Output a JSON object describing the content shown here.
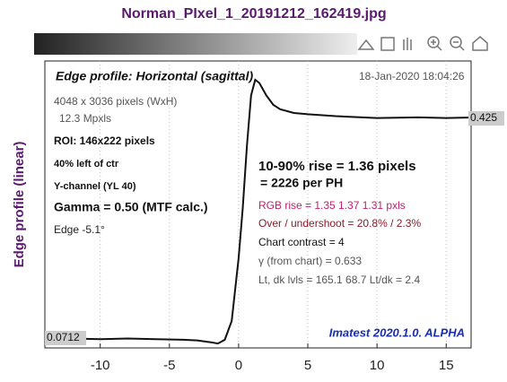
{
  "chart_data": {
    "type": "line",
    "title": "Norman_PIxel_1_20191212_162419.jpg",
    "plot_title": "Edge profile: Horizontal (sagittal)",
    "timestamp": "18-Jan-2020 18:04:26",
    "y_label": "Edge profile (linear)",
    "left_notes": [
      "4048 x 3036 pixels (WxH)",
      "12.3 Mpxls",
      "ROI:  146x222 pixels",
      "40% left of ctr",
      "Y-channel  (YL 40)",
      "Gamma = 0.50 (MTF calc.)",
      "Edge  -5.1°"
    ],
    "right_notes": [
      "10-90% rise = 1.36 pixels",
      "=  2226 per PH",
      "RGB rise =  1.35   1.37   1.31 pxls",
      "Over / undershoot = 20.8% /  2.3%",
      "Chart contrast = 4",
      "γ (from chart) = 0.633",
      "Lt, dk lvls = 165.1  68.7  Lt/dk = 2.4"
    ],
    "level_labels": [
      "0.0712",
      "0.425"
    ],
    "footer": "Imatest 2020.1.0. ALPHA",
    "x": [
      -14,
      -12,
      -10,
      -8,
      -6,
      -4,
      -3,
      -2,
      -1.5,
      -1,
      -0.5,
      0,
      0.3,
      0.6,
      0.9,
      1.2,
      1.5,
      2,
      2.5,
      3,
      4,
      5,
      7,
      10,
      13,
      15,
      17.5
    ],
    "series": [
      {
        "name": "Y",
        "color": "#111111",
        "values": [
          0.073,
          0.072,
          0.071,
          0.072,
          0.071,
          0.07,
          0.069,
          0.066,
          0.064,
          0.07,
          0.1,
          0.2,
          0.28,
          0.38,
          0.46,
          0.485,
          0.48,
          0.46,
          0.445,
          0.438,
          0.432,
          0.43,
          0.427,
          0.424,
          0.425,
          0.424,
          0.425
        ]
      }
    ],
    "xlim": [
      -14,
      16.8
    ],
    "ylim": [
      0.057,
      0.515
    ],
    "xticks": [
      -10,
      -5,
      0,
      5,
      10,
      15
    ],
    "grid": true
  }
}
